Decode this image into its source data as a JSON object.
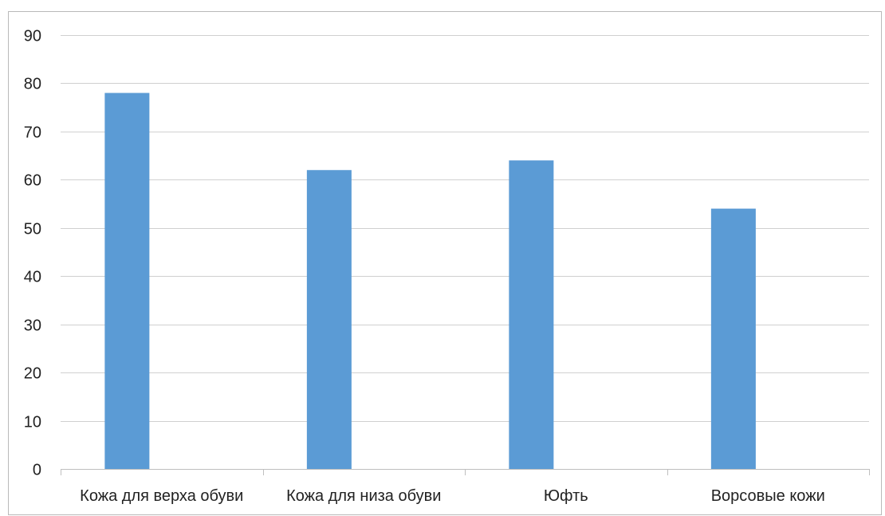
{
  "chart_data": {
    "type": "bar",
    "categories": [
      "Кожа для верха обуви",
      "Кожа для низа обуви",
      "Юфть",
      "Ворсовые кожи"
    ],
    "values": [
      78,
      62,
      64,
      54
    ],
    "title": "",
    "xlabel": "",
    "ylabel": "",
    "ylim": [
      0,
      90
    ],
    "yticks": [
      0,
      10,
      20,
      30,
      40,
      50,
      60,
      70,
      80,
      90
    ],
    "grid": true,
    "legend": "none",
    "bar_color": "#5b9bd5"
  }
}
